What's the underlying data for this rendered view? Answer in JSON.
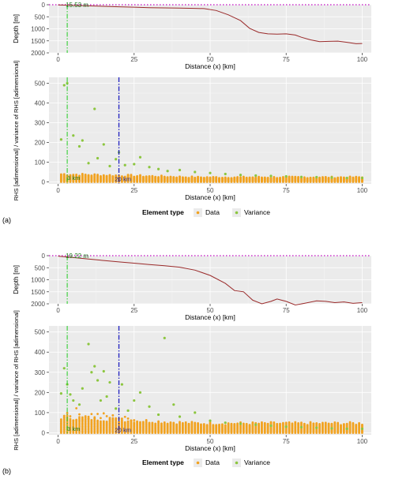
{
  "chart_data": [
    {
      "panel_label": "(a)",
      "legend": {
        "title": "Element type",
        "placement": "bottom",
        "entries": [
          {
            "label": "Data",
            "color": "#f2a21f"
          },
          {
            "label": "Variance",
            "color": "#8cc63f"
          }
        ]
      },
      "depth_plot": {
        "type": "line",
        "xlabel": "Distance (x) [km]",
        "ylabel": "Depth [m]",
        "xlim": [
          -3,
          103
        ],
        "ylim": [
          0,
          2000
        ],
        "y_reversed": true,
        "xticks": [
          0,
          25,
          50,
          75,
          100
        ],
        "yticks": [
          0,
          500,
          1000,
          1500,
          2000
        ],
        "annotation": "15.53 m",
        "vline_green_x": 3,
        "line_color": "#9a2a2a",
        "profile": {
          "x": [
            0,
            5,
            10,
            15,
            20,
            25,
            30,
            35,
            40,
            45,
            48,
            52,
            56,
            60,
            63,
            66,
            69,
            72,
            75,
            78,
            80,
            83,
            86,
            89,
            92,
            95,
            98,
            100
          ],
          "y": [
            10,
            25,
            45,
            65,
            85,
            100,
            120,
            130,
            140,
            150,
            160,
            240,
            420,
            660,
            980,
            1150,
            1210,
            1220,
            1210,
            1260,
            1350,
            1460,
            1530,
            1520,
            1510,
            1560,
            1620,
            1610
          ]
        }
      },
      "rhs_plot": {
        "type": "scatter",
        "xlabel": "Distance (x) [km]",
        "ylabel": "RHS [adimensional] / variance of RHS [adimensional]",
        "xlim": [
          -3,
          103
        ],
        "ylim": [
          -10,
          530
        ],
        "xticks": [
          0,
          25,
          50,
          75,
          100
        ],
        "yticks": [
          0,
          100,
          200,
          300,
          400,
          500
        ],
        "vline_green_x": 3,
        "vline_green_label": "3 km",
        "vline_blue_x": 20,
        "vline_blue_label": "20 km",
        "data_series": {
          "name": "Data",
          "x_step": 1,
          "x_start": 1,
          "x_end": 100,
          "values_range": [
            0,
            45
          ]
        },
        "variance_series": {
          "name": "Variance",
          "x": [
            1,
            2,
            3,
            5,
            7,
            8,
            10,
            12,
            13,
            15,
            17,
            19,
            20,
            22,
            25,
            27,
            30,
            33,
            36,
            40,
            45,
            50,
            55,
            60,
            65,
            70,
            75,
            80,
            85,
            90,
            95,
            100
          ],
          "y": [
            215,
            490,
            500,
            235,
            180,
            210,
            95,
            370,
            120,
            190,
            80,
            115,
            150,
            85,
            90,
            125,
            75,
            65,
            55,
            60,
            50,
            45,
            40,
            35,
            32,
            30,
            28,
            25,
            24,
            22,
            20,
            20
          ]
        }
      }
    },
    {
      "panel_label": "(b)",
      "legend": {
        "title": "Element type",
        "placement": "bottom",
        "entries": [
          {
            "label": "Data",
            "color": "#f2a21f"
          },
          {
            "label": "Variance",
            "color": "#8cc63f"
          }
        ]
      },
      "depth_plot": {
        "type": "line",
        "xlabel": "Distance (x) [km]",
        "ylabel": "Depth [m]",
        "xlim": [
          -3,
          103
        ],
        "ylim": [
          0,
          2000
        ],
        "y_reversed": true,
        "xticks": [
          0,
          25,
          50,
          75,
          100
        ],
        "yticks": [
          0,
          500,
          1000,
          1500,
          2000
        ],
        "annotation": "19.22 m",
        "vline_green_x": 3,
        "line_color": "#9a2a2a",
        "profile": {
          "x": [
            0,
            5,
            10,
            15,
            20,
            25,
            30,
            35,
            40,
            45,
            50,
            55,
            58,
            61,
            64,
            67,
            70,
            72,
            75,
            78,
            81,
            85,
            88,
            91,
            94,
            97,
            100
          ],
          "y": [
            20,
            80,
            140,
            200,
            260,
            310,
            370,
            420,
            480,
            600,
            820,
            1150,
            1450,
            1500,
            1850,
            2000,
            1900,
            1800,
            1900,
            2050,
            1980,
            1880,
            1900,
            1950,
            1920,
            1980,
            1950
          ]
        }
      },
      "rhs_plot": {
        "type": "scatter",
        "xlabel": "Distance (x) [km]",
        "ylabel": "RHS [adimensional] / variance of RHS [adimensional]",
        "xlim": [
          -3,
          103
        ],
        "ylim": [
          -10,
          530
        ],
        "xticks": [
          0,
          25,
          50,
          75,
          100
        ],
        "yticks": [
          0,
          100,
          200,
          300,
          400,
          500
        ],
        "vline_green_x": 3,
        "vline_green_label": "3 km",
        "vline_blue_x": 20,
        "vline_blue_label": "20 km",
        "data_series": {
          "name": "Data",
          "x_step": 1,
          "x_start": 1,
          "x_end": 100,
          "values_range": [
            0,
            90
          ]
        },
        "variance_series": {
          "name": "Variance",
          "x": [
            1,
            2,
            3,
            4,
            5,
            7,
            8,
            10,
            11,
            12,
            13,
            14,
            15,
            16,
            17,
            19,
            21,
            23,
            25,
            27,
            30,
            33,
            35,
            38,
            40,
            45,
            50,
            55,
            60,
            65,
            70,
            75,
            80,
            85,
            90,
            95,
            100
          ],
          "y": [
            195,
            320,
            240,
            190,
            160,
            140,
            220,
            440,
            300,
            330,
            260,
            160,
            305,
            180,
            250,
            120,
            240,
            110,
            160,
            200,
            130,
            90,
            470,
            140,
            80,
            100,
            60,
            50,
            45,
            40,
            35,
            30,
            28,
            25,
            22,
            20,
            20
          ]
        }
      }
    }
  ]
}
